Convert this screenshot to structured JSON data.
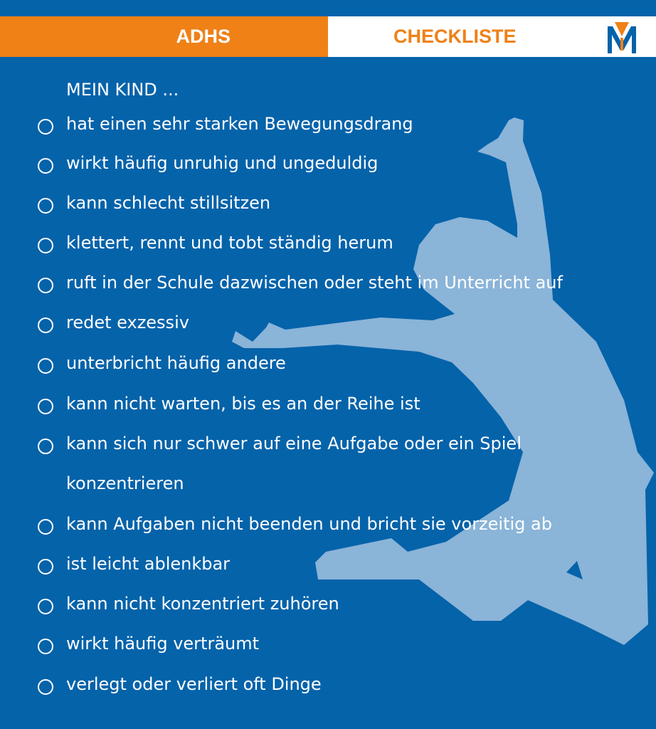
{
  "header": {
    "left_title": "ADHS",
    "right_title": "CHECKLISTE",
    "logo": "M-logo",
    "colors": {
      "background": "#0563aa",
      "accent": "#ef8117",
      "silhouette": "#8ab4d8"
    }
  },
  "checklist": {
    "intro": "MEIN KIND ...",
    "items": [
      {
        "text": "hat einen sehr starken Bewegungsdrang",
        "checked": false
      },
      {
        "text": "wirkt häufig unruhig und ungeduldig",
        "checked": false
      },
      {
        "text": "kann schlecht stillsitzen",
        "checked": false
      },
      {
        "text": "klettert, rennt und tobt ständig herum",
        "checked": false
      },
      {
        "text": "ruft in der Schule dazwischen oder steht im Unterricht auf",
        "checked": false
      },
      {
        "text": "redet exzessiv",
        "checked": false
      },
      {
        "text": "unterbricht häufig andere",
        "checked": false
      },
      {
        "text": "kann nicht warten, bis es an der Reihe ist",
        "checked": false
      },
      {
        "text": "kann sich nur schwer auf eine Aufgabe oder ein Spiel",
        "continuation": "konzentrieren",
        "checked": false
      },
      {
        "text": "kann Aufgaben nicht beenden und bricht sie vorzeitig ab",
        "checked": false
      },
      {
        "text": "ist leicht ablenkbar",
        "checked": false
      },
      {
        "text": "kann nicht konzentriert zuhören",
        "checked": false
      },
      {
        "text": "wirkt häufig verträumt",
        "checked": false
      },
      {
        "text": "verlegt oder verliert oft Dinge",
        "checked": false
      }
    ]
  }
}
